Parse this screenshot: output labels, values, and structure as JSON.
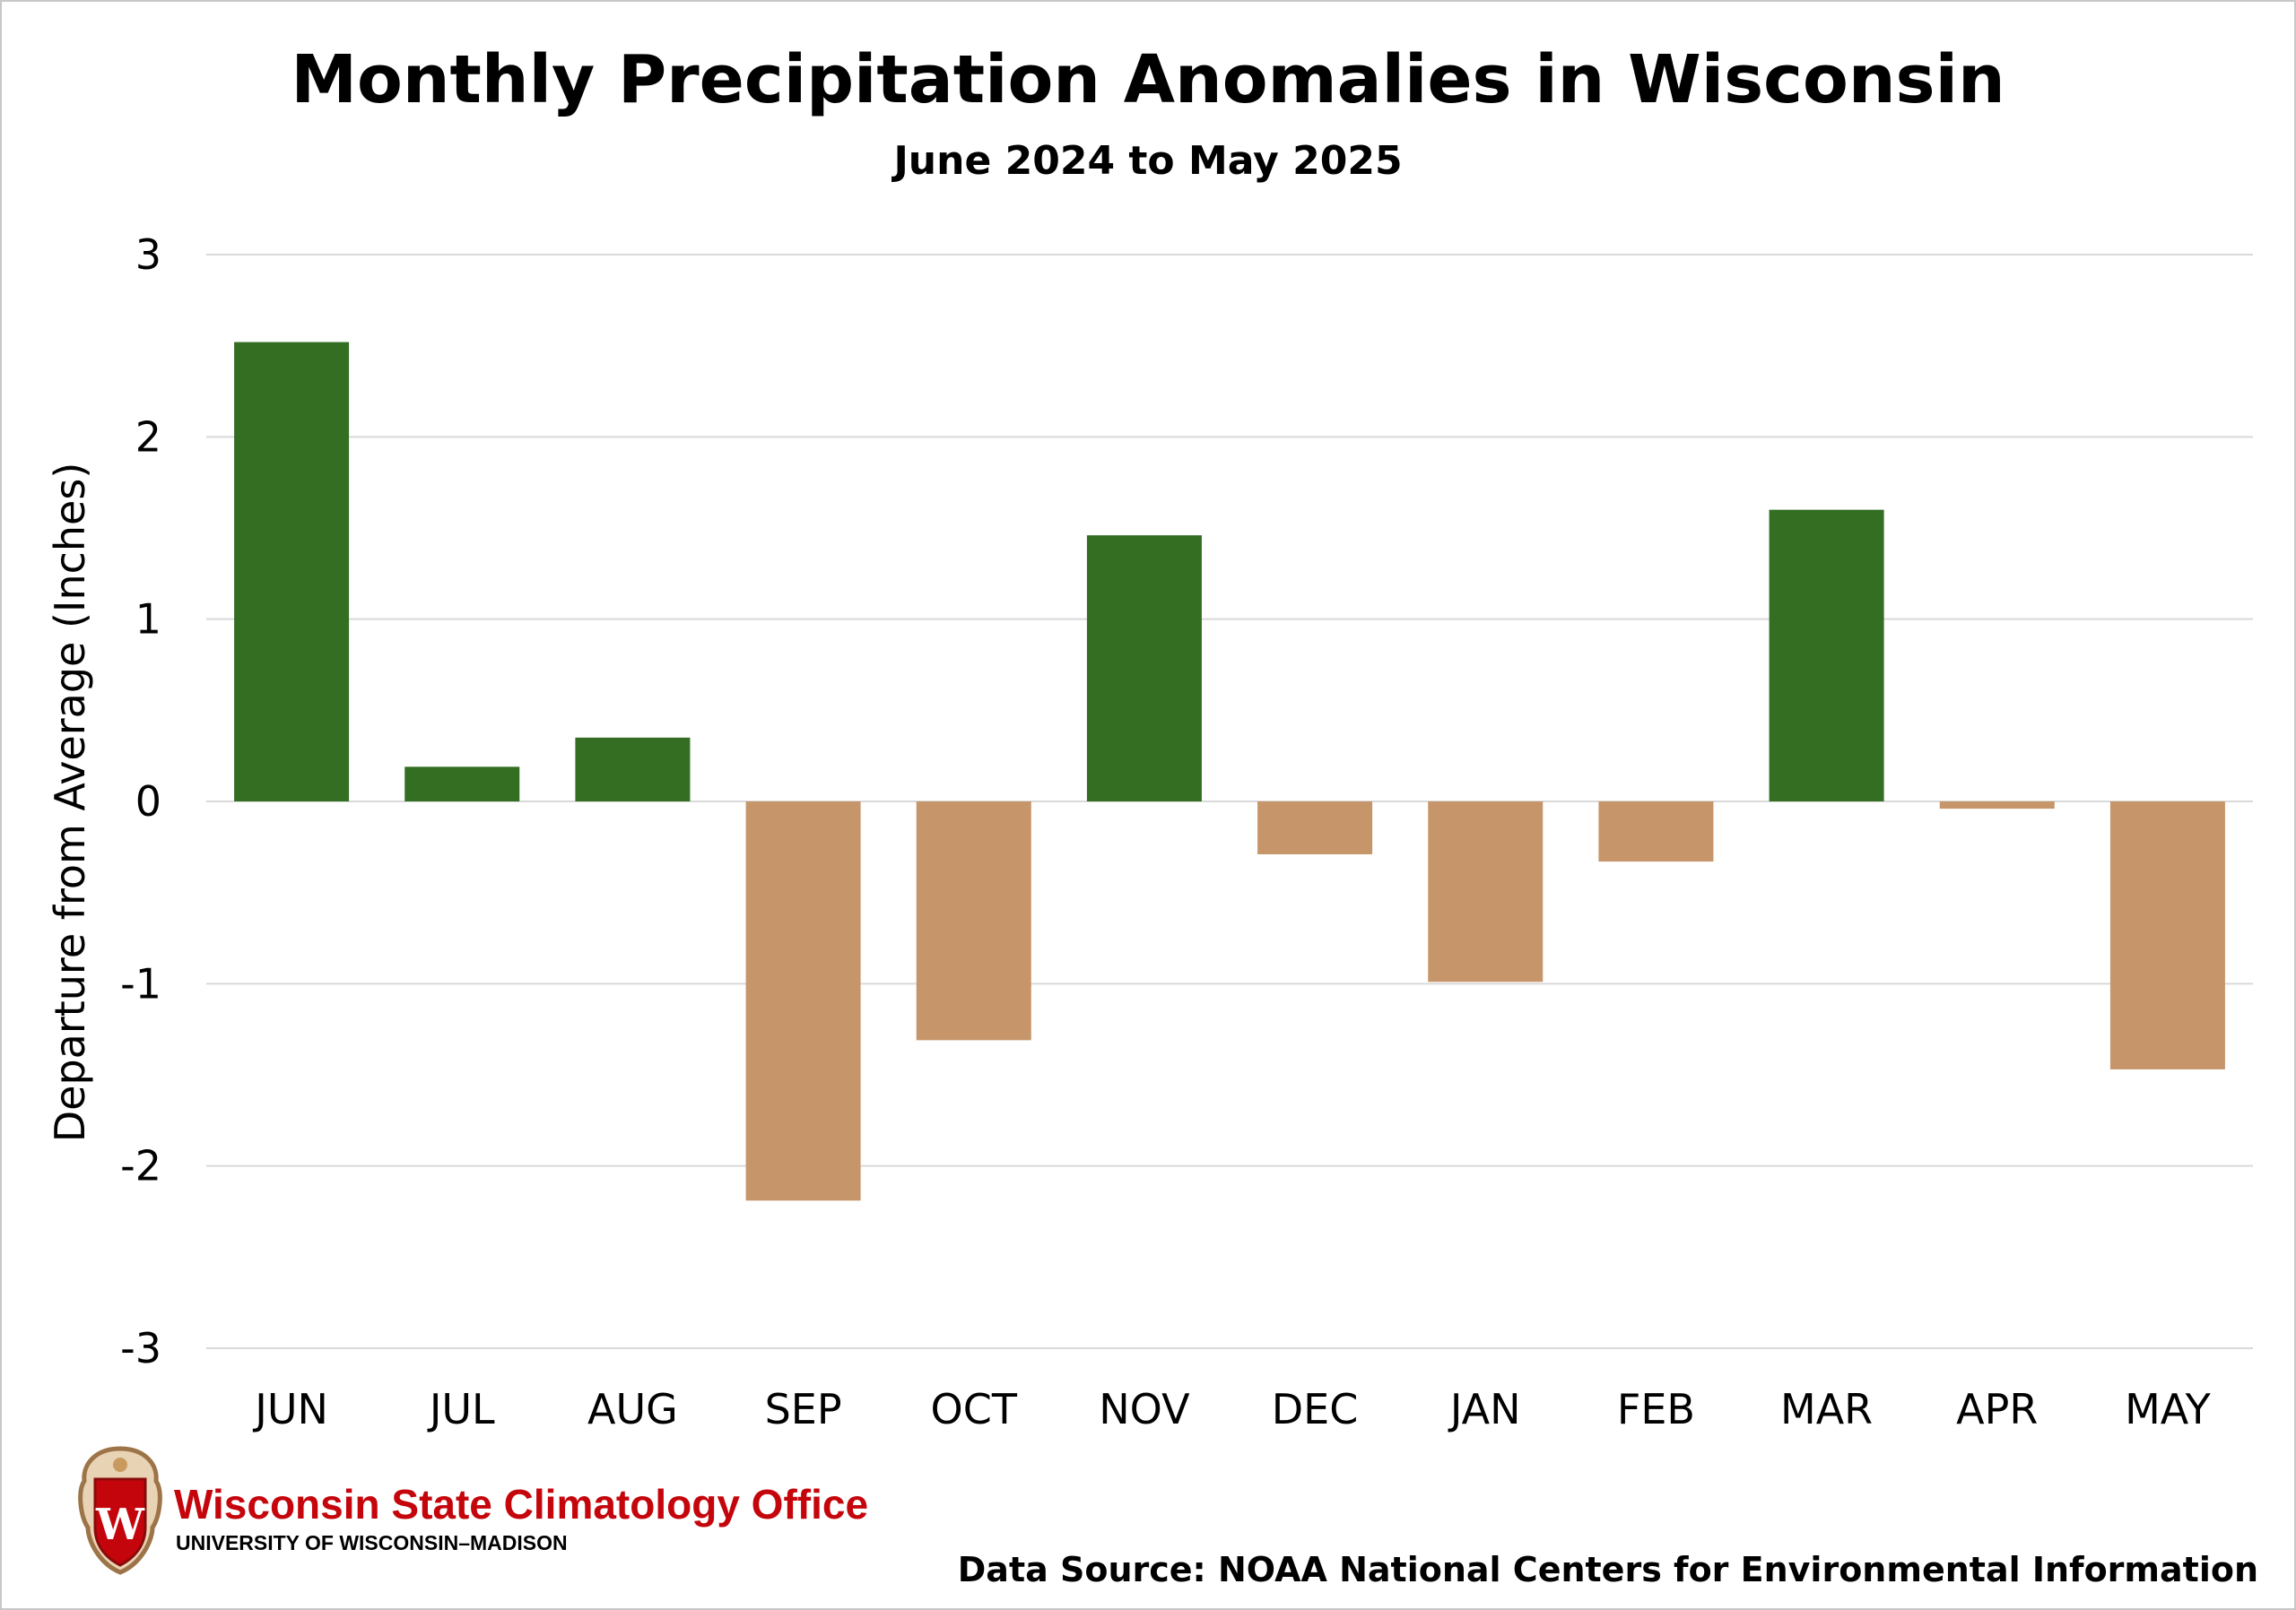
{
  "chart_data": {
    "type": "bar",
    "title": "Monthly Precipitation Anomalies in Wisconsin",
    "subtitle": "June 2024 to May 2025",
    "ylabel": "Departure from Average (Inches)",
    "xlabel": "",
    "ylim": [
      -3,
      3
    ],
    "yticks": [
      3,
      2,
      1,
      0,
      -1,
      -2,
      -3
    ],
    "grid": true,
    "legend": "none",
    "categories": [
      "JUN",
      "JUL",
      "AUG",
      "SEP",
      "OCT",
      "NOV",
      "DEC",
      "JAN",
      "FEB",
      "MAR",
      "APR",
      "MAY"
    ],
    "values": [
      2.52,
      0.19,
      0.35,
      -2.19,
      -1.31,
      1.46,
      -0.29,
      -0.99,
      -0.33,
      1.6,
      -0.04,
      -1.47
    ],
    "colors": {
      "positive": "#336e22",
      "negative": "#c6956a",
      "grid": "#d9d9d9"
    }
  },
  "branding": {
    "org_name": "Wisconsin State Climatology Office",
    "org_sub": "UNIVERSITY OF WISCONSIN–MADISON",
    "logo_letter": "W",
    "brand_color": "#c5050c"
  },
  "source": "Data Source: NOAA National Centers for Environmental Information"
}
